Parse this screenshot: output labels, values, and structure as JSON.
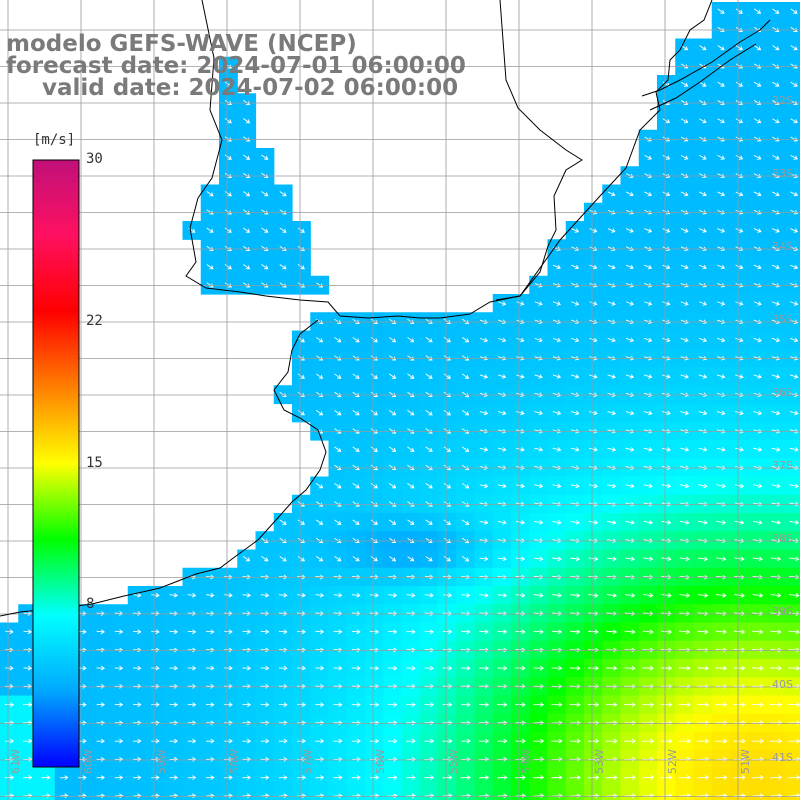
{
  "title": {
    "line1": "modelo GEFS-WAVE (NCEP)",
    "line2": "forecast date: 2024-07-01 06:00:00",
    "line3": "valid date: 2024-07-02 06:00:00"
  },
  "colorbar": {
    "unit": "[m/s]",
    "min": 0,
    "max": 30,
    "tick_labels": [
      "30",
      "22",
      "15",
      "8"
    ],
    "tick_values": [
      30,
      22,
      15,
      8
    ],
    "colors": [
      "#0000ff",
      "#00a8ff",
      "#00ffff",
      "#00ff00",
      "#ffff00",
      "#ff8000",
      "#ff0000",
      "#ff1060",
      "#c0107a"
    ]
  },
  "axes": {
    "lat_labels": [
      "32S",
      "33S",
      "34S",
      "35S",
      "36S",
      "37S",
      "38S",
      "39S",
      "40S",
      "41S"
    ],
    "lat_values": [
      -32,
      -33,
      -34,
      -35,
      -36,
      -37,
      -38,
      -39,
      -40,
      -41
    ],
    "lon_labels": [
      "61W",
      "60W",
      "59W",
      "58W",
      "57W",
      "56W",
      "55W",
      "54W",
      "53W",
      "52W",
      "51W"
    ],
    "lon_values": [
      -61,
      -60,
      -59,
      -58,
      -57,
      -56,
      -55,
      -54,
      -53,
      -52,
      -51
    ]
  },
  "colors": {
    "land": "#ffffff",
    "coast": "#000000",
    "grid": "#9a9a9a",
    "title": "#7a7a7a",
    "arrow": "#ffffff"
  }
}
